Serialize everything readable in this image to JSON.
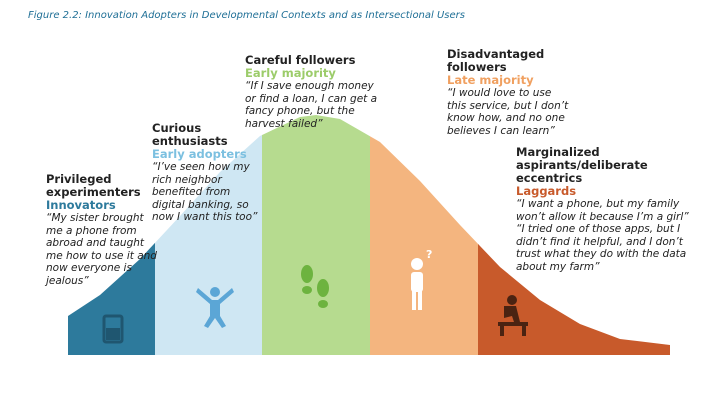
{
  "title": "Figure 2.2: Innovation Adopters in Developmental Contexts and as Intersectional Users",
  "groups": [
    {
      "name": "Privileged experimenters",
      "stage": "Innovators",
      "quotes": [
        "“My sister brought me a phone from abroad and taught me how to use it and now everyone is jealous”"
      ]
    },
    {
      "name": "Curious enthusiasts",
      "stage": "Early adopters",
      "quotes": [
        "“I’ve seen how my rich neighbor benefited from digital banking, so now I want this too”"
      ]
    },
    {
      "name": "Careful followers",
      "stage": "Early majority",
      "quotes": [
        "“If I save enough money or find a loan, I can get a fancy phone, but the harvest failed”"
      ]
    },
    {
      "name": "Disadvantaged followers",
      "stage": "Late majority",
      "quotes": [
        "“I would love to use this service, but I don’t know how, and no one believes I can learn”"
      ]
    },
    {
      "name": "Marginalized aspirants/deliberate eccentrics",
      "stage": "Laggards",
      "quotes": [
        "“I want a phone, but my family won’t allow it because I’m a girl”",
        "“I tried one of those apps, but I didn’t find it helpful, and I don’t trust what they do with the data about my farm”"
      ]
    }
  ]
}
